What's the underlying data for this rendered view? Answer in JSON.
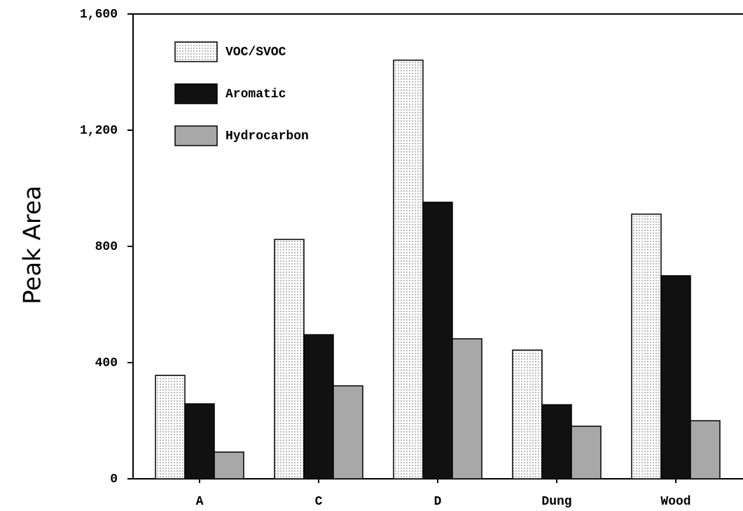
{
  "chart_data": {
    "type": "bar",
    "y_label": "Peak Area",
    "categories": [
      "A",
      "C",
      "D",
      "Dung",
      "Wood"
    ],
    "series": [
      {
        "name": "VOC/SVOC",
        "color": "#e6e6e6",
        "values": [
          356,
          824,
          1441,
          443,
          911
        ]
      },
      {
        "name": "Aromatic",
        "color": "#111111",
        "values": [
          258,
          496,
          952,
          255,
          699
        ]
      },
      {
        "name": "Hydrocarbon",
        "color": "#a8a8a8",
        "values": [
          92,
          320,
          482,
          181,
          200
        ]
      }
    ],
    "ylim": [
      0,
      1600
    ],
    "yticks": [
      0,
      400,
      800,
      {
        "value": 1200,
        "label": "1,200"
      },
      {
        "value": 1600,
        "label": "1,600"
      }
    ],
    "legend": "upper-left"
  }
}
